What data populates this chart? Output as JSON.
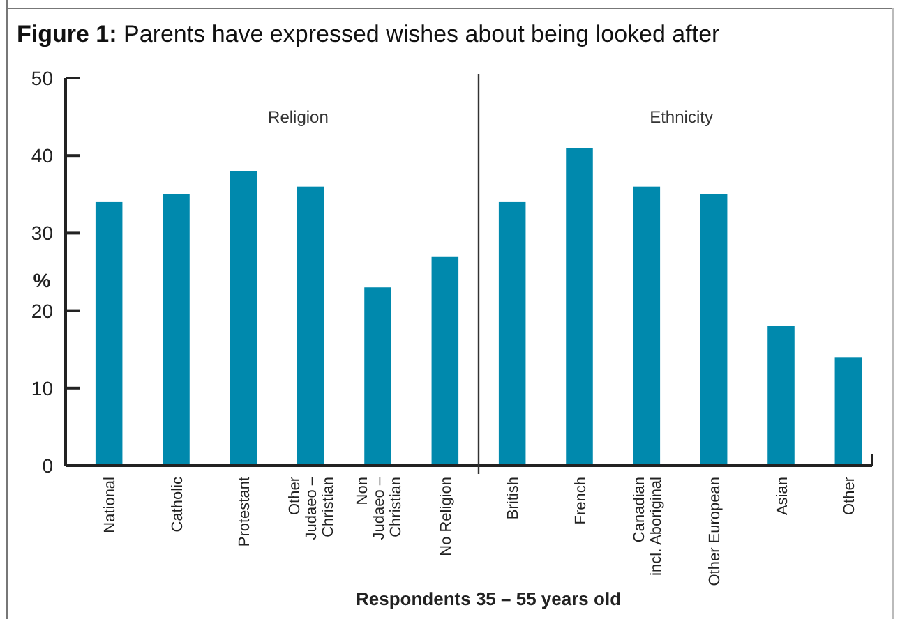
{
  "chart_data": {
    "type": "bar",
    "title": "Figure 1: Parents have expressed wishes about being looked after",
    "categories": [
      "National",
      "Catholic",
      "Protestant",
      "Other\nJudaeo –\nChristian",
      "Non\nJudaeo –\nChristian",
      "No Religion",
      "British",
      "French",
      "Canadian\nincl. Aboriginal",
      "Other European",
      "Asian",
      "Other"
    ],
    "values": [
      34,
      35,
      38,
      36,
      23,
      27,
      34,
      41,
      36,
      35,
      18,
      14
    ],
    "color": "#0089ad",
    "ylim": [
      0,
      50
    ],
    "yticks": [
      0,
      10,
      20,
      30,
      40,
      50
    ],
    "ylabel": "%",
    "xlabel": "Respondents 35 – 55 years old",
    "annotations": [
      "Religion",
      "Ethnicity"
    ],
    "grid": false
  }
}
